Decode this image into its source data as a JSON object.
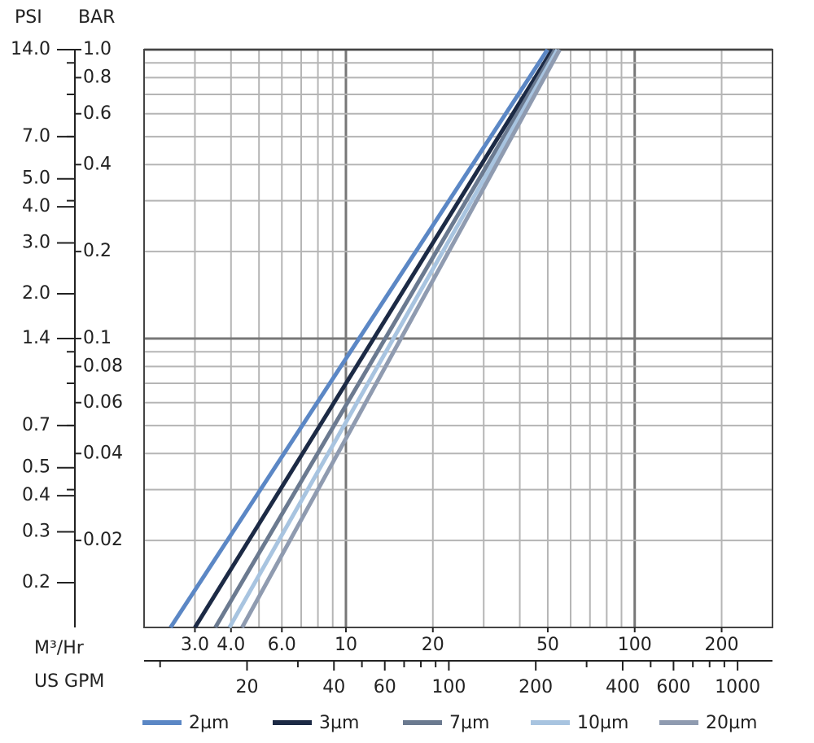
{
  "chart_data": {
    "type": "line",
    "xscale": "log",
    "yscale": "log",
    "xlabel": "M³/Hr",
    "x2label": "US GPM",
    "ylabel": "BAR",
    "y2label": "PSI",
    "xlim": [
      2,
      300
    ],
    "xticks": [
      {
        "value": 3,
        "label": "3.0"
      },
      {
        "value": 4,
        "label": "4.0"
      },
      {
        "value": 6,
        "label": "6.0"
      },
      10,
      20,
      50,
      100,
      200
    ],
    "xgrid": [
      3,
      4,
      5,
      6,
      7,
      8,
      9,
      10,
      20,
      30,
      40,
      50,
      60,
      70,
      80,
      90,
      100,
      200,
      300
    ],
    "x2lim": [
      8.8,
      1321
    ],
    "x2ticks": [
      20,
      40,
      60,
      100,
      200,
      400,
      600,
      1000
    ],
    "x2minorticks": [
      10,
      30,
      50,
      70,
      80,
      90,
      300,
      500,
      700,
      800,
      900
    ],
    "ylim": [
      0.01,
      1.0
    ],
    "yticks": [
      {
        "value": 1.0,
        "label": "1.0"
      },
      0.8,
      0.6,
      0.4,
      0.2,
      0.1,
      0.08,
      0.06,
      0.04,
      0.02
    ],
    "yminorticks": [
      0.9,
      0.7,
      0.5,
      0.3,
      0.09,
      0.07,
      0.05,
      0.03
    ],
    "ygrid": [
      0.02,
      0.03,
      0.04,
      0.05,
      0.06,
      0.07,
      0.08,
      0.09,
      0.1,
      0.2,
      0.3,
      0.4,
      0.5,
      0.6,
      0.7,
      0.8,
      0.9,
      1.0
    ],
    "y2lim": [
      0.14,
      14.0
    ],
    "y2ticks": [
      {
        "value": 14.0,
        "label": "14.0"
      },
      {
        "value": 7.0,
        "label": "7.0"
      },
      {
        "value": 5.0,
        "label": "5.0"
      },
      {
        "value": 4.0,
        "label": "4.0"
      },
      {
        "value": 3.0,
        "label": "3.0"
      },
      {
        "value": 2.0,
        "label": "2.0"
      },
      1.4,
      0.7,
      0.5,
      0.4,
      0.3,
      0.2
    ],
    "grid": true,
    "legend": "bottom",
    "series": [
      {
        "name": "2µm",
        "color": "#5b87c5",
        "x": [
          2.47,
          49.9
        ],
        "values": [
          0.01,
          1.0
        ]
      },
      {
        "name": "3µm",
        "color": "#1c2a45",
        "x": [
          3.0,
          51.9
        ],
        "values": [
          0.01,
          1.0
        ]
      },
      {
        "name": "7µm",
        "color": "#6b7a90",
        "x": [
          3.53,
          53.0
        ],
        "values": [
          0.01,
          1.0
        ]
      },
      {
        "name": "10µm",
        "color": "#a8c4e0",
        "x": [
          3.95,
          54.0
        ],
        "values": [
          0.01,
          1.0
        ]
      },
      {
        "name": "20µm",
        "color": "#8f9bb0",
        "x": [
          4.37,
          55.0
        ],
        "values": [
          0.01,
          1.0
        ]
      }
    ]
  }
}
